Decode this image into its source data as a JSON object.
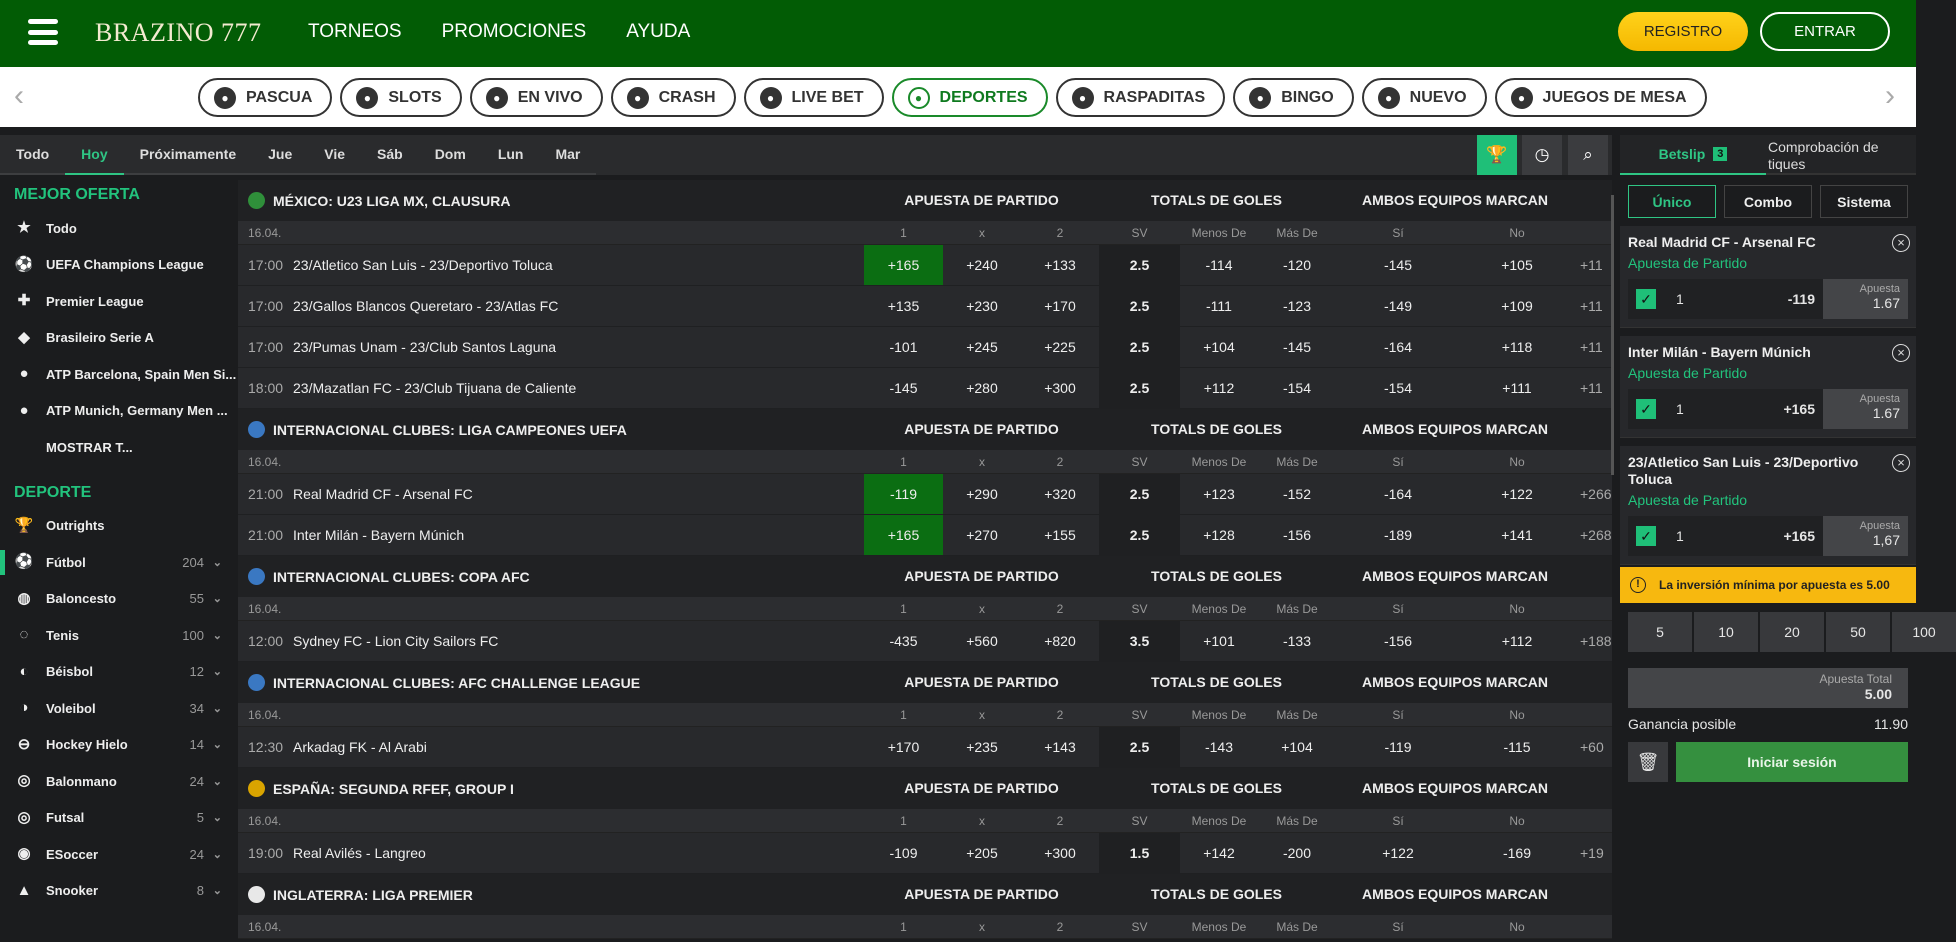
{
  "header": {
    "logo": "BRAZINO 777",
    "nav": [
      "TORNEOS",
      "PROMOCIONES",
      "AYUDA"
    ],
    "register": "REGISTRO",
    "login": "ENTRAR"
  },
  "categories": [
    {
      "label": "PASCUA",
      "icon": "egg-icon"
    },
    {
      "label": "SLOTS",
      "icon": "slot-machine-icon"
    },
    {
      "label": "EN VIVO",
      "icon": "live-dealer-icon"
    },
    {
      "label": "CRASH",
      "icon": "rocket-icon"
    },
    {
      "label": "LIVE BET",
      "icon": "live-bet-icon"
    },
    {
      "label": "DEPORTES",
      "icon": "soccer-ball-icon",
      "active": true
    },
    {
      "label": "RASPADITAS",
      "icon": "scratch-card-icon"
    },
    {
      "label": "BINGO",
      "icon": "bingo-ball-icon"
    },
    {
      "label": "NUEVO",
      "icon": "new-badge-icon"
    },
    {
      "label": "JUEGOS DE MESA",
      "icon": "poker-chip-icon"
    }
  ],
  "date_tabs": [
    "Todo",
    "Hoy",
    "Próximamente",
    "Jue",
    "Vie",
    "Sáb",
    "Dom",
    "Lun",
    "Mar"
  ],
  "active_date_tab": "Hoy",
  "sidebar": {
    "best_title": "MEJOR OFERTA",
    "best": [
      {
        "label": "Todo",
        "icon": "★"
      },
      {
        "label": "UEFA Champions League",
        "icon": "⚽"
      },
      {
        "label": "Premier League",
        "icon": "✚"
      },
      {
        "label": "Brasileiro Serie A",
        "icon": "◆"
      },
      {
        "label": "ATP Barcelona, Spain Men Si...",
        "icon": "●"
      },
      {
        "label": "ATP Munich, Germany Men ...",
        "icon": "●"
      },
      {
        "label": "MOSTRAR T...",
        "icon": ""
      }
    ],
    "sport_title": "DEPORTE",
    "sports": [
      {
        "label": "Outrights",
        "icon": "🏆",
        "count": ""
      },
      {
        "label": "Fútbol",
        "icon": "⚽",
        "count": "204",
        "active": true
      },
      {
        "label": "Baloncesto",
        "icon": "◍",
        "count": "55"
      },
      {
        "label": "Tenis",
        "icon": "◌",
        "count": "100"
      },
      {
        "label": "Béisbol",
        "icon": "◐",
        "count": "12"
      },
      {
        "label": "Voleibol",
        "icon": "◑",
        "count": "34"
      },
      {
        "label": "Hockey Hielo",
        "icon": "⊖",
        "count": "14"
      },
      {
        "label": "Balonmano",
        "icon": "◎",
        "count": "24"
      },
      {
        "label": "Futsal",
        "icon": "◎",
        "count": "5"
      },
      {
        "label": "ESoccer",
        "icon": "◉",
        "count": "24"
      },
      {
        "label": "Snooker",
        "icon": "▲",
        "count": "8"
      }
    ]
  },
  "groups": [
    "APUESTA DE PARTIDO",
    "TOTALS DE GOLES",
    "AMBOS EQUIPOS MARCAN"
  ],
  "columns": [
    "1",
    "x",
    "2",
    "SV",
    "Menos De",
    "Más De",
    "Sí",
    "No"
  ],
  "leagues": [
    {
      "name": "MÉXICO: U23 LIGA MX, CLAUSURA",
      "flag": "#2f8f3a",
      "date": "16.04.",
      "matches": [
        {
          "time": "17:00",
          "name": "23/Atletico San Luis - 23/Deportivo Toluca",
          "odds": [
            "+165",
            "+240",
            "+133",
            "2.5",
            "-114",
            "-120",
            "-145",
            "+105",
            "+11"
          ],
          "sel": 0
        },
        {
          "time": "17:00",
          "name": "23/Gallos Blancos Queretaro - 23/Atlas FC",
          "odds": [
            "+135",
            "+230",
            "+170",
            "2.5",
            "-111",
            "-123",
            "-149",
            "+109",
            "+11"
          ]
        },
        {
          "time": "17:00",
          "name": "23/Pumas Unam - 23/Club Santos Laguna",
          "odds": [
            "-101",
            "+245",
            "+225",
            "2.5",
            "+104",
            "-145",
            "-164",
            "+118",
            "+11"
          ]
        },
        {
          "time": "18:00",
          "name": "23/Mazatlan FC - 23/Club Tijuana de Caliente",
          "odds": [
            "-145",
            "+280",
            "+300",
            "2.5",
            "+112",
            "-154",
            "-154",
            "+111",
            "+11"
          ]
        }
      ]
    },
    {
      "name": "INTERNACIONAL CLUBES: LIGA CAMPEONES UEFA",
      "flag": "#3a78c2",
      "date": "16.04.",
      "matches": [
        {
          "time": "21:00",
          "name": "Real Madrid CF - Arsenal FC",
          "odds": [
            "-119",
            "+290",
            "+320",
            "2.5",
            "+123",
            "-152",
            "-164",
            "+122",
            "+266"
          ],
          "sel": 0
        },
        {
          "time": "21:00",
          "name": "Inter Milán - Bayern Múnich",
          "odds": [
            "+165",
            "+270",
            "+155",
            "2.5",
            "+128",
            "-156",
            "-189",
            "+141",
            "+268"
          ],
          "sel": 0
        }
      ]
    },
    {
      "name": "INTERNACIONAL CLUBES: COPA AFC",
      "flag": "#3a78c2",
      "date": "16.04.",
      "matches": [
        {
          "time": "12:00",
          "name": "Sydney FC - Lion City Sailors FC",
          "odds": [
            "-435",
            "+560",
            "+820",
            "3.5",
            "+101",
            "-133",
            "-156",
            "+112",
            "+188"
          ]
        }
      ]
    },
    {
      "name": "INTERNACIONAL CLUBES: AFC CHALLENGE LEAGUE",
      "flag": "#3a78c2",
      "date": "16.04.",
      "matches": [
        {
          "time": "12:30",
          "name": "Arkadag FK - Al Arabi",
          "odds": [
            "+170",
            "+235",
            "+143",
            "2.5",
            "-143",
            "+104",
            "-119",
            "-115",
            "+60"
          ]
        }
      ]
    },
    {
      "name": "ESPAÑA: SEGUNDA RFEF, GROUP I",
      "flag": "#d9a400",
      "date": "16.04.",
      "matches": [
        {
          "time": "19:00",
          "name": "Real Avilés - Langreo",
          "odds": [
            "-109",
            "+205",
            "+300",
            "1.5",
            "+142",
            "-200",
            "+122",
            "-169",
            "+19"
          ]
        }
      ]
    },
    {
      "name": "INGLATERRA: LIGA PREMIER",
      "flag": "#e8e8e8",
      "date": "16.04.",
      "matches": []
    }
  ],
  "betslip": {
    "tab": "Betslip",
    "count": "3",
    "check_tab": "Comprobación de tiques",
    "types": [
      "Único",
      "Combo",
      "Sistema"
    ],
    "bets": [
      {
        "title": "Real Madrid CF - Arsenal FC",
        "market": "Apuesta de Partido",
        "pick": "1",
        "odds": "-119",
        "stake_label": "Apuesta",
        "stake": "1.67"
      },
      {
        "title": "Inter Milán - Bayern Múnich",
        "market": "Apuesta de Partido",
        "pick": "1",
        "odds": "+165",
        "stake_label": "Apuesta",
        "stake": "1.67"
      },
      {
        "title": "23/Atletico San Luis - 23/Deportivo Toluca",
        "market": "Apuesta de Partido",
        "pick": "1",
        "odds": "+165",
        "stake_label": "Apuesta",
        "stake": "1,67"
      }
    ],
    "warning": "La inversión mínima por apuesta es 5.00",
    "amounts": [
      "5",
      "10",
      "20",
      "50",
      "100"
    ],
    "total_label": "Apuesta Total",
    "total": "5.00",
    "win_label": "Ganancia posible",
    "win": "11.90",
    "login": "Iniciar sesión"
  },
  "colors": {
    "header": "#025c05",
    "accent": "#22c37d",
    "selected": "#0b6e12",
    "warning": "#f7b80f"
  }
}
